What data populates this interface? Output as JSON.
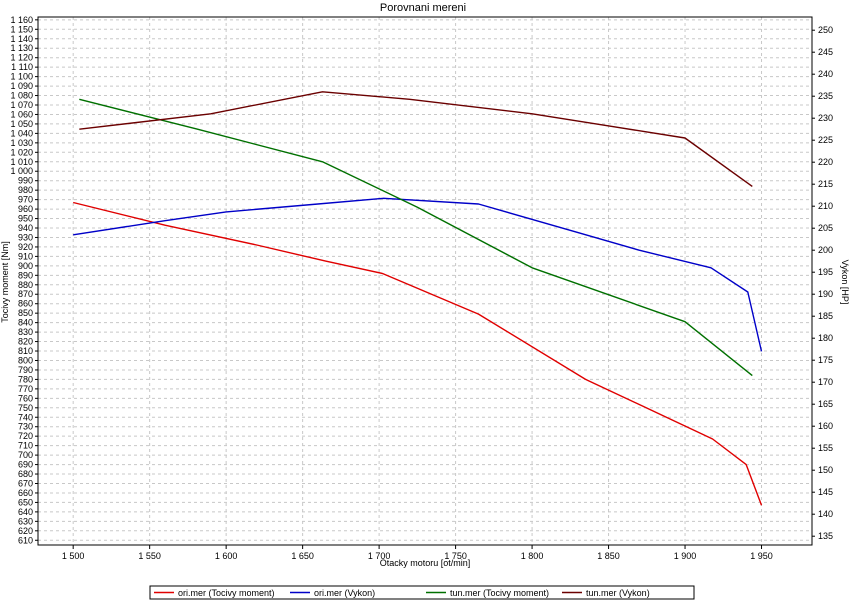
{
  "chart_data": {
    "type": "line",
    "title": "Porovnani mereni",
    "xlabel": "Otacky motoru [ot/min]",
    "ylabel_left": "Tocivy moment [Nm]",
    "ylabel_right": "Vykon [HP]",
    "xlim": [
      1477,
      1983
    ],
    "ylim_left": [
      605,
      1163
    ],
    "ylim_right": [
      133,
      253
    ],
    "x_ticks": [
      1500,
      1550,
      1600,
      1650,
      1700,
      1750,
      1800,
      1850,
      1900,
      1950
    ],
    "x_tick_labels": [
      "1 500",
      "1 550",
      "1 600",
      "1 650",
      "1 700",
      "1 750",
      "1 800",
      "1 850",
      "1 900",
      "1 950"
    ],
    "y_left_ticks": [
      610,
      620,
      630,
      640,
      650,
      660,
      670,
      680,
      690,
      700,
      710,
      720,
      730,
      740,
      750,
      760,
      770,
      780,
      790,
      800,
      810,
      820,
      830,
      840,
      850,
      860,
      870,
      880,
      890,
      900,
      910,
      920,
      930,
      940,
      950,
      960,
      970,
      980,
      990,
      1000,
      1010,
      1020,
      1030,
      1040,
      1050,
      1060,
      1070,
      1080,
      1090,
      1100,
      1110,
      1120,
      1130,
      1140,
      1150,
      1160
    ],
    "y_left_tick_labels": [
      "610",
      "620",
      "630",
      "640",
      "650",
      "660",
      "670",
      "680",
      "690",
      "700",
      "710",
      "720",
      "730",
      "740",
      "750",
      "760",
      "770",
      "780",
      "790",
      "800",
      "810",
      "820",
      "830",
      "840",
      "850",
      "860",
      "870",
      "880",
      "890",
      "900",
      "910",
      "920",
      "930",
      "940",
      "950",
      "960",
      "970",
      "980",
      "990",
      "1 000",
      "1 010",
      "1 020",
      "1 030",
      "1 040",
      "1 050",
      "1 060",
      "1 070",
      "1 080",
      "1 090",
      "1 100",
      "1 110",
      "1 120",
      "1 130",
      "1 140",
      "1 150",
      "1 160"
    ],
    "y_right_ticks": [
      135,
      140,
      145,
      150,
      155,
      160,
      165,
      170,
      175,
      180,
      185,
      190,
      195,
      200,
      205,
      210,
      215,
      220,
      225,
      230,
      235,
      240,
      245,
      250
    ],
    "y_right_tick_labels": [
      "135",
      "140",
      "145",
      "150",
      "155",
      "160",
      "165",
      "170",
      "175",
      "180",
      "185",
      "190",
      "195",
      "200",
      "205",
      "210",
      "215",
      "220",
      "225",
      "230",
      "235",
      "240",
      "245",
      "250"
    ],
    "grid": true,
    "legend_position": "bottom",
    "series": [
      {
        "name": "ori.mer  (Tocivy moment)",
        "axis": "left",
        "color": "#e00000",
        "x": [
          1500,
          1560,
          1620,
          1665,
          1702,
          1765,
          1835,
          1872,
          1918,
          1940,
          1950
        ],
        "y": [
          967,
          943,
          922,
          905,
          892,
          849,
          780,
          752,
          717,
          690,
          647
        ]
      },
      {
        "name": "ori.mer  (Vykon)",
        "axis": "right",
        "color": "#0000c8",
        "x": [
          1500,
          1560,
          1600,
          1660,
          1703,
          1765,
          1830,
          1870,
          1917,
          1941,
          1950
        ],
        "y": [
          203.5,
          206.7,
          208.7,
          210.5,
          211.8,
          210.5,
          204.0,
          200.0,
          196.0,
          190.5,
          177.0
        ]
      },
      {
        "name": "tun.mer  (Tocivy moment)",
        "axis": "left",
        "color": "#007000",
        "x": [
          1504,
          1580,
          1663,
          1725,
          1800,
          1900,
          1944
        ],
        "y": [
          1076,
          1045,
          1010,
          962,
          898,
          841,
          784
        ]
      },
      {
        "name": "tun.mer  (Vykon)",
        "axis": "right",
        "color": "#6b0000",
        "x": [
          1504,
          1590,
          1663,
          1720,
          1800,
          1900,
          1944
        ],
        "y": [
          227.5,
          231.0,
          236.0,
          234.3,
          231.0,
          225.5,
          214.5
        ]
      }
    ]
  }
}
